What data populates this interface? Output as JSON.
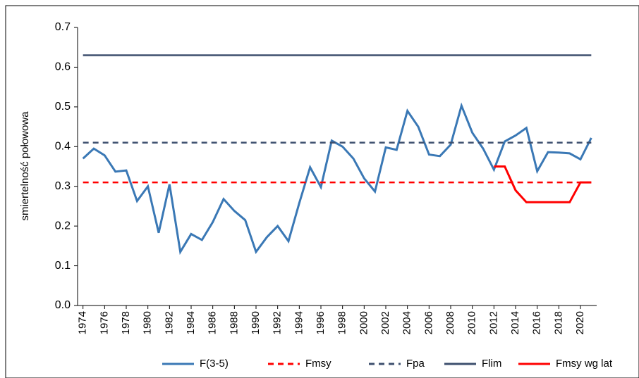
{
  "chart_data": {
    "type": "line",
    "y_label": "smiertelność połowowa",
    "x": [
      1974,
      1975,
      1976,
      1977,
      1978,
      1979,
      1980,
      1981,
      1982,
      1983,
      1984,
      1985,
      1986,
      1987,
      1988,
      1989,
      1990,
      1991,
      1992,
      1993,
      1994,
      1995,
      1996,
      1997,
      1998,
      1999,
      2000,
      2001,
      2002,
      2003,
      2004,
      2005,
      2006,
      2007,
      2008,
      2009,
      2010,
      2011,
      2012,
      2013,
      2014,
      2015,
      2016,
      2017,
      2018,
      2019,
      2020,
      2021
    ],
    "xlim": [
      1973.5,
      2021.5
    ],
    "xticks": [
      1974,
      1976,
      1978,
      1980,
      1982,
      1984,
      1986,
      1988,
      1990,
      1992,
      1994,
      1996,
      1998,
      2000,
      2002,
      2004,
      2006,
      2008,
      2010,
      2012,
      2014,
      2016,
      2018,
      2020
    ],
    "ylim": [
      0,
      0.7
    ],
    "yticks": [
      {
        "value": 0,
        "label": "0.0"
      },
      0.1,
      0.2,
      0.3,
      0.4,
      0.5,
      0.6,
      0.7
    ],
    "series": [
      {
        "name": "F(3-5)",
        "color": "#3a78b5",
        "dash": false,
        "values": [
          0.37,
          0.395,
          0.378,
          0.337,
          0.34,
          0.263,
          0.3,
          0.183,
          0.305,
          0.135,
          0.18,
          0.165,
          0.21,
          0.268,
          0.238,
          0.215,
          0.135,
          0.172,
          0.2,
          0.162,
          0.258,
          0.348,
          0.298,
          0.415,
          0.4,
          0.37,
          0.32,
          0.287,
          0.398,
          0.392,
          0.49,
          0.45,
          0.38,
          0.376,
          0.405,
          0.503,
          0.435,
          0.395,
          0.342,
          0.413,
          0.428,
          0.447,
          0.338,
          0.386,
          0.385,
          0.383,
          0.368,
          0.422
        ]
      },
      {
        "name": "Fmsy",
        "color": "#ff0000",
        "dash": true,
        "value": 0.31
      },
      {
        "name": "Fpa",
        "color": "#3d4f6e",
        "dash": true,
        "value": 0.41
      },
      {
        "name": "Flim",
        "color": "#3d4f6e",
        "dash": false,
        "value": 0.63
      },
      {
        "name": "Fmsy wg lat",
        "color": "#ff0000",
        "dash": false,
        "values": [
          null,
          null,
          null,
          null,
          null,
          null,
          null,
          null,
          null,
          null,
          null,
          null,
          null,
          null,
          null,
          null,
          null,
          null,
          null,
          null,
          null,
          null,
          null,
          null,
          null,
          null,
          null,
          null,
          null,
          null,
          null,
          null,
          null,
          null,
          null,
          null,
          null,
          null,
          0.35,
          0.35,
          0.29,
          0.26,
          0.26,
          0.26,
          0.26,
          0.26,
          0.31,
          0.31
        ]
      }
    ]
  }
}
